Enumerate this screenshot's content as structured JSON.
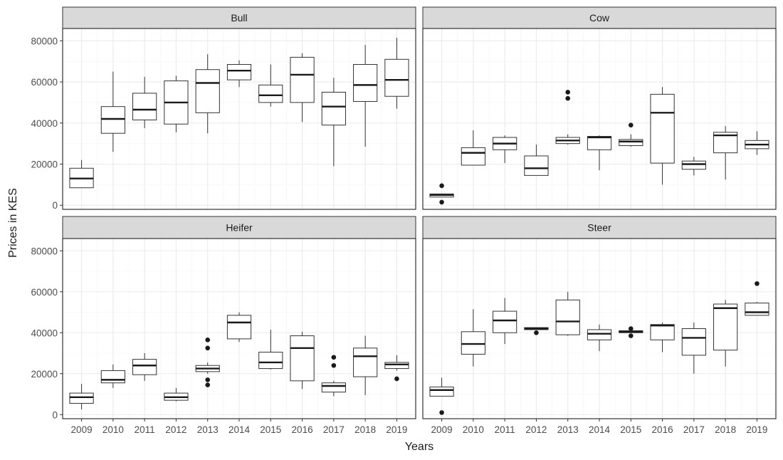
{
  "chart_data": {
    "type": "boxplot",
    "xlabel": "Years",
    "ylabel": "Prices in KES",
    "ylim": [
      -2000,
      86000
    ],
    "y_ticks": [
      0,
      20000,
      40000,
      60000,
      80000
    ],
    "y_tick_labels": [
      "0",
      "20000",
      "40000",
      "60000",
      "80000"
    ],
    "categories": [
      "2009",
      "2010",
      "2011",
      "2012",
      "2013",
      "2014",
      "2015",
      "2016",
      "2017",
      "2018",
      "2019"
    ],
    "grid": true,
    "panels": [
      {
        "name": "Bull",
        "boxes": [
          {
            "year": "2009",
            "lw": 8500,
            "q1": 8500,
            "median": 13000,
            "q3": 18000,
            "uw": 22000,
            "outliers": []
          },
          {
            "year": "2010",
            "lw": 26000,
            "q1": 35000,
            "median": 42000,
            "q3": 48000,
            "uw": 65000,
            "outliers": []
          },
          {
            "year": "2011",
            "lw": 37500,
            "q1": 41500,
            "median": 46500,
            "q3": 54500,
            "uw": 62500,
            "outliers": []
          },
          {
            "year": "2012",
            "lw": 35500,
            "q1": 39500,
            "median": 50000,
            "q3": 60500,
            "uw": 63000,
            "outliers": []
          },
          {
            "year": "2013",
            "lw": 35000,
            "q1": 45000,
            "median": 59500,
            "q3": 66000,
            "uw": 73500,
            "outliers": []
          },
          {
            "year": "2014",
            "lw": 57500,
            "q1": 61000,
            "median": 65500,
            "q3": 68500,
            "uw": 70500,
            "outliers": []
          },
          {
            "year": "2015",
            "lw": 48000,
            "q1": 50000,
            "median": 53500,
            "q3": 58500,
            "uw": 68500,
            "outliers": []
          },
          {
            "year": "2016",
            "lw": 40500,
            "q1": 50000,
            "median": 63500,
            "q3": 72000,
            "uw": 74000,
            "outliers": []
          },
          {
            "year": "2017",
            "lw": 19000,
            "q1": 39000,
            "median": 48000,
            "q3": 55000,
            "uw": 62000,
            "outliers": []
          },
          {
            "year": "2018",
            "lw": 28500,
            "q1": 50500,
            "median": 58500,
            "q3": 68500,
            "uw": 78000,
            "outliers": []
          },
          {
            "year": "2019",
            "lw": 47000,
            "q1": 53000,
            "median": 61000,
            "q3": 71000,
            "uw": 81500,
            "outliers": []
          }
        ]
      },
      {
        "name": "Cow",
        "boxes": [
          {
            "year": "2009",
            "lw": 4000,
            "q1": 4000,
            "median": 5000,
            "q3": 5500,
            "uw": 5500,
            "outliers": [
              1500,
              9500
            ]
          },
          {
            "year": "2010",
            "lw": 19500,
            "q1": 19500,
            "median": 25500,
            "q3": 28000,
            "uw": 36500,
            "outliers": []
          },
          {
            "year": "2011",
            "lw": 20500,
            "q1": 27000,
            "median": 30000,
            "q3": 33000,
            "uw": 34000,
            "outliers": []
          },
          {
            "year": "2012",
            "lw": 14500,
            "q1": 14500,
            "median": 18000,
            "q3": 24000,
            "uw": 29500,
            "outliers": []
          },
          {
            "year": "2013",
            "lw": 29500,
            "q1": 30000,
            "median": 31500,
            "q3": 33000,
            "uw": 34500,
            "outliers": [
              52000,
              55000
            ]
          },
          {
            "year": "2014",
            "lw": 17000,
            "q1": 27000,
            "median": 33000,
            "q3": 33500,
            "uw": 34000,
            "outliers": []
          },
          {
            "year": "2015",
            "lw": 28500,
            "q1": 29000,
            "median": 31000,
            "q3": 32000,
            "uw": 34500,
            "outliers": [
              39000
            ]
          },
          {
            "year": "2016",
            "lw": 10000,
            "q1": 20500,
            "median": 45000,
            "q3": 54000,
            "uw": 57500,
            "outliers": []
          },
          {
            "year": "2017",
            "lw": 14500,
            "q1": 17500,
            "median": 20000,
            "q3": 21500,
            "uw": 23500,
            "outliers": []
          },
          {
            "year": "2018",
            "lw": 12500,
            "q1": 25500,
            "median": 34000,
            "q3": 35500,
            "uw": 38500,
            "outliers": []
          },
          {
            "year": "2019",
            "lw": 24500,
            "q1": 27500,
            "median": 29500,
            "q3": 31500,
            "uw": 36000,
            "outliers": []
          }
        ]
      },
      {
        "name": "Heifer",
        "boxes": [
          {
            "year": "2009",
            "lw": 2500,
            "q1": 5500,
            "median": 8500,
            "q3": 10500,
            "uw": 15000,
            "outliers": []
          },
          {
            "year": "2010",
            "lw": 13000,
            "q1": 15500,
            "median": 17000,
            "q3": 21500,
            "uw": 24500,
            "outliers": []
          },
          {
            "year": "2011",
            "lw": 16500,
            "q1": 19500,
            "median": 24000,
            "q3": 27000,
            "uw": 30000,
            "outliers": []
          },
          {
            "year": "2012",
            "lw": 6500,
            "q1": 7000,
            "median": 8500,
            "q3": 10500,
            "uw": 13000,
            "outliers": []
          },
          {
            "year": "2013",
            "lw": 20000,
            "q1": 21000,
            "median": 22500,
            "q3": 24000,
            "uw": 25500,
            "outliers": [
              14500,
              17000,
              32500,
              36500
            ]
          },
          {
            "year": "2014",
            "lw": 35500,
            "q1": 37000,
            "median": 45000,
            "q3": 48500,
            "uw": 50000,
            "outliers": []
          },
          {
            "year": "2015",
            "lw": 22000,
            "q1": 22500,
            "median": 25500,
            "q3": 30500,
            "uw": 41500,
            "outliers": []
          },
          {
            "year": "2016",
            "lw": 12500,
            "q1": 16500,
            "median": 32500,
            "q3": 38500,
            "uw": 40500,
            "outliers": []
          },
          {
            "year": "2017",
            "lw": 9000,
            "q1": 11000,
            "median": 14000,
            "q3": 15500,
            "uw": 16500,
            "outliers": [
              24000,
              28000
            ]
          },
          {
            "year": "2018",
            "lw": 9500,
            "q1": 18500,
            "median": 28500,
            "q3": 32500,
            "uw": 38500,
            "outliers": []
          },
          {
            "year": "2019",
            "lw": 21500,
            "q1": 22500,
            "median": 24500,
            "q3": 25500,
            "uw": 29000,
            "outliers": [
              17500
            ]
          }
        ]
      },
      {
        "name": "Steer",
        "boxes": [
          {
            "year": "2009",
            "lw": 9000,
            "q1": 9000,
            "median": 12000,
            "q3": 13500,
            "uw": 18000,
            "outliers": [
              1000
            ]
          },
          {
            "year": "2010",
            "lw": 23500,
            "q1": 29500,
            "median": 34500,
            "q3": 40500,
            "uw": 51500,
            "outliers": []
          },
          {
            "year": "2011",
            "lw": 34500,
            "q1": 40000,
            "median": 46000,
            "q3": 50500,
            "uw": 57000,
            "outliers": []
          },
          {
            "year": "2012",
            "lw": 41500,
            "q1": 41500,
            "median": 42000,
            "q3": 42500,
            "uw": 42500,
            "outliers": [
              40000
            ]
          },
          {
            "year": "2013",
            "lw": 38500,
            "q1": 39000,
            "median": 45500,
            "q3": 56000,
            "uw": 60000,
            "outliers": []
          },
          {
            "year": "2014",
            "lw": 31000,
            "q1": 36500,
            "median": 39500,
            "q3": 41500,
            "uw": 44000,
            "outliers": []
          },
          {
            "year": "2015",
            "lw": 40000,
            "q1": 40000,
            "median": 40500,
            "q3": 41000,
            "uw": 41000,
            "outliers": [
              38500,
              42000
            ]
          },
          {
            "year": "2016",
            "lw": 30500,
            "q1": 36500,
            "median": 43500,
            "q3": 44000,
            "uw": 45000,
            "outliers": []
          },
          {
            "year": "2017",
            "lw": 20000,
            "q1": 29000,
            "median": 37500,
            "q3": 42000,
            "uw": 45000,
            "outliers": []
          },
          {
            "year": "2018",
            "lw": 23500,
            "q1": 31500,
            "median": 52000,
            "q3": 54000,
            "uw": 56000,
            "outliers": []
          },
          {
            "year": "2019",
            "lw": 48500,
            "q1": 48500,
            "median": 50000,
            "q3": 54500,
            "uw": 55000,
            "outliers": [
              64000
            ]
          }
        ]
      }
    ]
  }
}
